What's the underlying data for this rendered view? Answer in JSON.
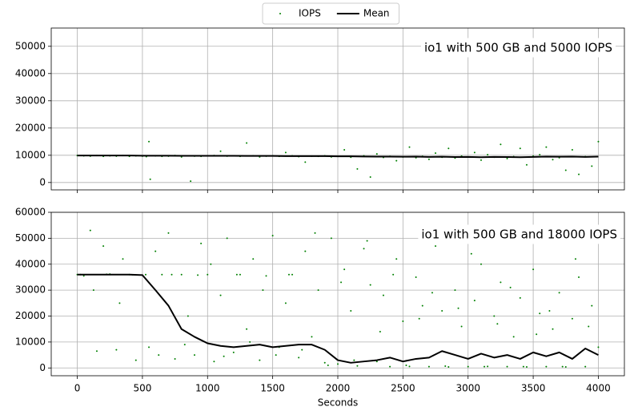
{
  "chart_data": [
    {
      "type": "scatter",
      "annotation": "io1 with 500 GB and 5000 IOPS",
      "legend": "upper center",
      "grid": true,
      "x_tick_labels": false,
      "xlim": [
        -200,
        4200
      ],
      "ylim": [
        -2700,
        56700
      ],
      "xticks": [
        0,
        500,
        1000,
        1500,
        2000,
        2500,
        3000,
        3500,
        4000
      ],
      "yticks": [
        0,
        10000,
        20000,
        30000,
        40000,
        50000
      ],
      "series": [
        {
          "name": "IOPS",
          "color": "green",
          "style": "points",
          "x": [
            0,
            50,
            100,
            150,
            200,
            250,
            300,
            350,
            400,
            450,
            500,
            530,
            550,
            560,
            600,
            650,
            700,
            750,
            800,
            850,
            870,
            900,
            950,
            1000,
            1050,
            1100,
            1150,
            1200,
            1250,
            1300,
            1350,
            1400,
            1450,
            1500,
            1550,
            1600,
            1650,
            1700,
            1750,
            1800,
            1850,
            1900,
            1950,
            2000,
            2050,
            2100,
            2150,
            2200,
            2250,
            2300,
            2350,
            2400,
            2450,
            2500,
            2550,
            2600,
            2650,
            2700,
            2750,
            2800,
            2850,
            2900,
            2950,
            3000,
            3050,
            3100,
            3150,
            3200,
            3250,
            3300,
            3350,
            3400,
            3450,
            3500,
            3550,
            3600,
            3650,
            3700,
            3750,
            3800,
            3850,
            3900,
            3950,
            4000
          ],
          "values": [
            9900,
            9800,
            9700,
            9900,
            9600,
            9800,
            9700,
            9900,
            9600,
            9800,
            9700,
            9500,
            15000,
            1200,
            9800,
            9600,
            9700,
            9900,
            9400,
            9800,
            500,
            9700,
            9600,
            9800,
            9900,
            11500,
            9700,
            9800,
            9600,
            14500,
            9800,
            9400,
            9700,
            9800,
            9600,
            11000,
            9800,
            9500,
            7500,
            9700,
            9600,
            9800,
            9400,
            9600,
            12000,
            9300,
            5000,
            9800,
            2000,
            10500,
            9200,
            9600,
            8000,
            9400,
            13000,
            9100,
            9600,
            8500,
            10800,
            9300,
            12500,
            9000,
            9700,
            9400,
            11000,
            8200,
            10200,
            9300,
            14000,
            8800,
            9500,
            12500,
            6500,
            9700,
            10200,
            13000,
            8400,
            9100,
            4500,
            12000,
            3000,
            9500,
            6000,
            15000
          ]
        },
        {
          "name": "Mean",
          "color": "black",
          "style": "line",
          "x": [
            0,
            100,
            200,
            300,
            400,
            500,
            600,
            700,
            800,
            900,
            1000,
            1100,
            1200,
            1300,
            1400,
            1500,
            1600,
            1700,
            1800,
            1900,
            2000,
            2100,
            2200,
            2300,
            2400,
            2500,
            2600,
            2700,
            2800,
            2900,
            3000,
            3100,
            3200,
            3300,
            3400,
            3500,
            3600,
            3700,
            3800,
            3900,
            4000
          ],
          "values": [
            9900,
            9900,
            9900,
            9900,
            9900,
            9850,
            9850,
            9850,
            9800,
            9800,
            9800,
            9800,
            9800,
            9750,
            9750,
            9750,
            9700,
            9700,
            9700,
            9700,
            9600,
            9600,
            9550,
            9500,
            9500,
            9450,
            9500,
            9400,
            9450,
            9350,
            9400,
            9300,
            9400,
            9350,
            9300,
            9400,
            9500,
            9450,
            9500,
            9400,
            9500
          ]
        }
      ]
    },
    {
      "type": "scatter",
      "annotation": "io1 with 500 GB and 18000 IOPS",
      "xlabel": "Seconds",
      "grid": true,
      "x_tick_labels": true,
      "xlim": [
        -200,
        4200
      ],
      "ylim": [
        -3000,
        60000
      ],
      "xticks": [
        0,
        500,
        1000,
        1500,
        2000,
        2500,
        3000,
        3500,
        4000
      ],
      "yticks": [
        0,
        10000,
        20000,
        30000,
        40000,
        50000,
        60000
      ],
      "series": [
        {
          "color": "green",
          "style": "points",
          "x": [
            0,
            50,
            100,
            150,
            200,
            250,
            300,
            350,
            400,
            450,
            500,
            550,
            600,
            650,
            700,
            750,
            800,
            850,
            900,
            950,
            1000,
            1050,
            1100,
            1150,
            1200,
            1250,
            1300,
            1350,
            1400,
            1450,
            1500,
            1550,
            1600,
            1650,
            1700,
            1750,
            1800,
            1850,
            1900,
            1950,
            2000,
            2050,
            2100,
            2150,
            2200,
            2250,
            2300,
            2350,
            2400,
            2450,
            2500,
            2550,
            2600,
            2650,
            2700,
            2750,
            2800,
            2850,
            2900,
            2950,
            3000,
            3050,
            3100,
            3150,
            3200,
            3250,
            3300,
            3350,
            3400,
            3450,
            3500,
            3550,
            3600,
            3650,
            3700,
            3750,
            3800,
            3850,
            3900,
            3950,
            4000,
            25,
            125,
            225,
            325,
            425,
            525,
            625,
            725,
            825,
            925,
            1025,
            1125,
            1225,
            1325,
            1425,
            1525,
            1625,
            1725,
            1825,
            1925,
            2025,
            2125,
            2225,
            2325,
            2425,
            2525,
            2625,
            2725,
            2825,
            2925,
            3025,
            3125,
            3225,
            3325,
            3425,
            3525,
            3625,
            3725,
            3825,
            3925
          ],
          "values": [
            36000,
            35500,
            53000,
            6500,
            47000,
            36200,
            7000,
            42000,
            36000,
            3000,
            35800,
            8000,
            45000,
            36000,
            52000,
            3500,
            36000,
            20000,
            5000,
            48000,
            36000,
            2500,
            28000,
            50000,
            6000,
            36000,
            15000,
            42000,
            3000,
            35500,
            51000,
            8000,
            25000,
            36000,
            4000,
            45000,
            12000,
            30000,
            2000,
            50000,
            1500,
            38000,
            22000,
            800,
            46000,
            32000,
            2500,
            28000,
            500,
            42000,
            18000,
            600,
            35000,
            24000,
            500,
            47000,
            22000,
            400,
            30000,
            16000,
            500,
            26000,
            40000,
            600,
            20000,
            33000,
            500,
            12000,
            27000,
            400,
            38000,
            21000,
            500,
            15000,
            29000,
            400,
            19000,
            35000,
            500,
            24000,
            8000,
            36000,
            30000,
            36100,
            25000,
            35900,
            36000,
            5000,
            36000,
            9000,
            35800,
            40000,
            4500,
            36000,
            10000,
            30000,
            5000,
            36000,
            7000,
            52000,
            1000,
            33000,
            3000,
            49000,
            14000,
            36000,
            1000,
            19000,
            29000,
            700,
            23000,
            44000,
            500,
            17000,
            31000,
            500,
            13000,
            22000,
            500,
            42000,
            16000
          ]
        },
        {
          "color": "black",
          "style": "line",
          "x": [
            0,
            100,
            200,
            300,
            400,
            500,
            600,
            700,
            800,
            900,
            1000,
            1100,
            1200,
            1300,
            1400,
            1500,
            1600,
            1700,
            1800,
            1900,
            2000,
            2100,
            2200,
            2300,
            2400,
            2500,
            2600,
            2700,
            2800,
            2900,
            3000,
            3100,
            3200,
            3300,
            3400,
            3500,
            3600,
            3700,
            3800,
            3900,
            4000
          ],
          "values": [
            36000,
            36000,
            36000,
            36000,
            36000,
            35800,
            30000,
            24000,
            15000,
            12000,
            9500,
            8500,
            8000,
            8500,
            9000,
            8000,
            8500,
            9000,
            9000,
            7000,
            3000,
            2000,
            2500,
            3000,
            4000,
            2500,
            3500,
            4000,
            6500,
            5000,
            3500,
            5500,
            4000,
            5000,
            3500,
            6000,
            4500,
            6000,
            3500,
            7500,
            5000
          ]
        }
      ]
    }
  ]
}
